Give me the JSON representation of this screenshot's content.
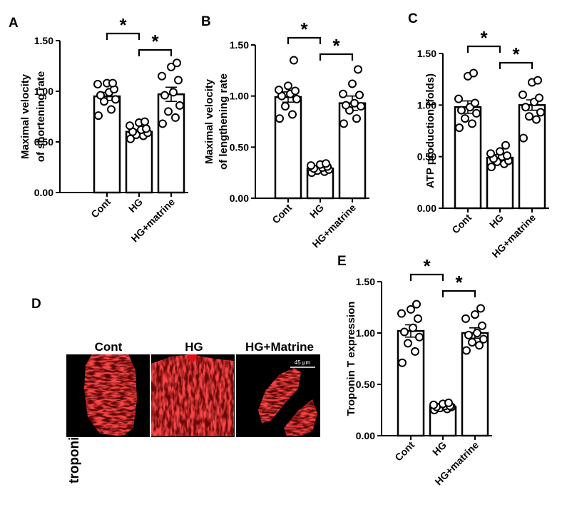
{
  "colors": {
    "bar": "#000000",
    "bg": "#ffffff",
    "stain": "#e01010",
    "scale": "#ffffff"
  },
  "chart_data": [
    {
      "id": "A",
      "panel_label": "A",
      "type": "bar",
      "categories": [
        "Cont",
        "HG",
        "HG+matrine"
      ],
      "values": [
        0.95,
        0.6,
        0.97
      ],
      "sem": [
        0.04,
        0.02,
        0.07
      ],
      "points": [
        [
          0.76,
          0.82,
          0.9,
          0.92,
          0.96,
          0.99,
          1.02,
          1.07,
          1.08,
          1.08
        ],
        [
          0.53,
          0.56,
          0.57,
          0.59,
          0.6,
          0.62,
          0.63,
          0.66,
          0.69,
          0.7
        ],
        [
          0.68,
          0.74,
          0.8,
          0.86,
          0.96,
          0.99,
          1.11,
          1.15,
          1.24,
          1.28
        ]
      ],
      "ylabel": [
        "Maximal velocity",
        "of shortening rate"
      ],
      "ylim": [
        0,
        1.5
      ],
      "ticks": [
        "0.00",
        "0.50",
        "1.00",
        "1.50"
      ],
      "significance": [
        {
          "from": 0,
          "to": 1,
          "label": "*"
        },
        {
          "from": 1,
          "to": 2,
          "label": "*"
        }
      ]
    },
    {
      "id": "B",
      "panel_label": "B",
      "type": "bar",
      "categories": [
        "Cont",
        "HG",
        "HG+matrine"
      ],
      "values": [
        0.99,
        0.29,
        0.93
      ],
      "sem": [
        0.05,
        0.02,
        0.07
      ],
      "points": [
        [
          0.78,
          0.82,
          0.9,
          0.97,
          1.0,
          1.02,
          1.05,
          1.06,
          1.1,
          1.35
        ],
        [
          0.25,
          0.26,
          0.27,
          0.28,
          0.29,
          0.3,
          0.31,
          0.32,
          0.33,
          0.34
        ],
        [
          0.73,
          0.78,
          0.86,
          0.9,
          0.91,
          0.93,
          1.01,
          1.02,
          1.12,
          1.26
        ]
      ],
      "ylabel": [
        "Maximal velocity",
        "of lengthening rate"
      ],
      "ylim": [
        0,
        1.5
      ],
      "ticks": [
        "0.00",
        "0.50",
        "1.00",
        "1.50"
      ],
      "significance": [
        {
          "from": 0,
          "to": 1,
          "label": "*"
        },
        {
          "from": 1,
          "to": 2,
          "label": "*"
        }
      ]
    },
    {
      "id": "C",
      "panel_label": "C",
      "type": "bar",
      "categories": [
        "Cont",
        "HG",
        "HG+matrine"
      ],
      "values": [
        0.98,
        0.49,
        1.0
      ],
      "sem": [
        0.06,
        0.03,
        0.05
      ],
      "points": [
        [
          0.78,
          0.82,
          0.87,
          0.92,
          0.95,
          0.98,
          1.02,
          1.06,
          1.28,
          1.31
        ],
        [
          0.4,
          0.43,
          0.45,
          0.46,
          0.48,
          0.5,
          0.51,
          0.53,
          0.55,
          0.61
        ],
        [
          0.68,
          0.86,
          0.89,
          0.93,
          0.98,
          1.03,
          1.07,
          1.1,
          1.22,
          1.24
        ]
      ],
      "ylabel": [
        "ATP production (folds)"
      ],
      "ylim": [
        0,
        1.5
      ],
      "ticks": [
        "0.00",
        "0.50",
        "1.00",
        "1.50"
      ],
      "significance": [
        {
          "from": 0,
          "to": 1,
          "label": "*"
        },
        {
          "from": 1,
          "to": 2,
          "label": "*"
        }
      ]
    },
    {
      "id": "E",
      "panel_label": "E",
      "type": "bar",
      "categories": [
        "Cont",
        "HG",
        "HG+matrine"
      ],
      "values": [
        1.02,
        0.28,
        1.0
      ],
      "sem": [
        0.06,
        0.01,
        0.05
      ],
      "points": [
        [
          0.71,
          0.82,
          0.9,
          0.96,
          1.01,
          1.05,
          1.14,
          1.19,
          1.23,
          1.28
        ],
        [
          0.25,
          0.26,
          0.27,
          0.28,
          0.28,
          0.29,
          0.29,
          0.3,
          0.31,
          0.32
        ],
        [
          0.83,
          0.88,
          0.91,
          0.94,
          0.98,
          1.0,
          1.07,
          1.14,
          1.18,
          1.24
        ]
      ],
      "ylabel": [
        "Troponin T expression"
      ],
      "ylim": [
        0,
        1.5
      ],
      "ticks": [
        "0.00",
        "0.50",
        "1.00",
        "1.50"
      ],
      "significance": [
        {
          "from": 0,
          "to": 1,
          "label": "*"
        },
        {
          "from": 1,
          "to": 2,
          "label": "*"
        }
      ]
    }
  ],
  "panel_d": {
    "panel_label": "D",
    "side_label": "troponin T staining",
    "columns": [
      "Cont",
      "HG",
      "HG+Matrine"
    ],
    "scale_bar": "45 µm"
  }
}
